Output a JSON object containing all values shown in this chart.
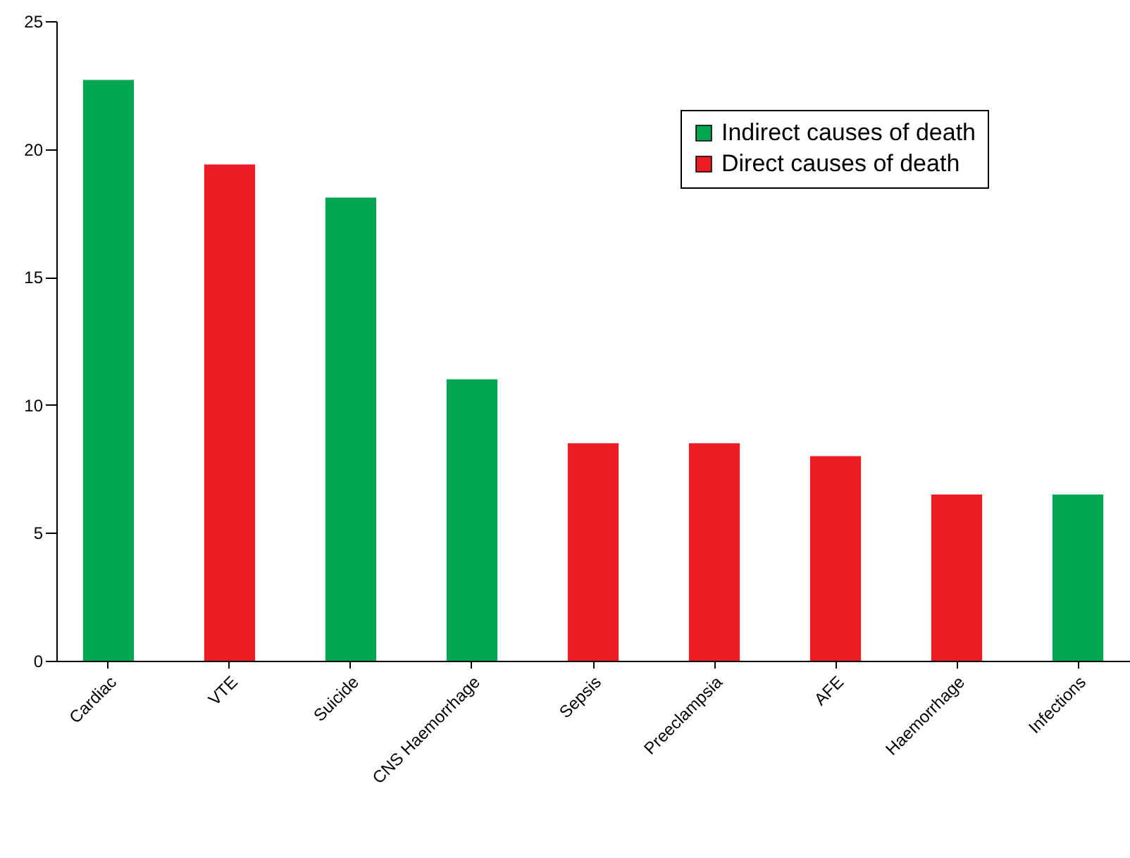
{
  "chart_data": {
    "type": "bar",
    "categories": [
      "Cardiac",
      "VTE",
      "Suicide",
      "CNS Haemorrhage",
      "Sepsis",
      "Preeclampsia",
      "AFE",
      "Haemorrhage",
      "Infections"
    ],
    "series": [
      {
        "name": "Indirect causes of death",
        "color": "#00a650",
        "values": [
          22.7,
          null,
          18.1,
          11.0,
          null,
          null,
          null,
          null,
          6.5
        ]
      },
      {
        "name": "Direct causes of death",
        "color": "#ed1c24",
        "values": [
          null,
          19.4,
          null,
          null,
          8.5,
          8.5,
          8.0,
          6.5,
          null
        ]
      }
    ],
    "ylim": [
      0,
      25
    ],
    "yticks": [
      0,
      5,
      10,
      15,
      20,
      25
    ],
    "grid": false,
    "legend": "top right"
  }
}
